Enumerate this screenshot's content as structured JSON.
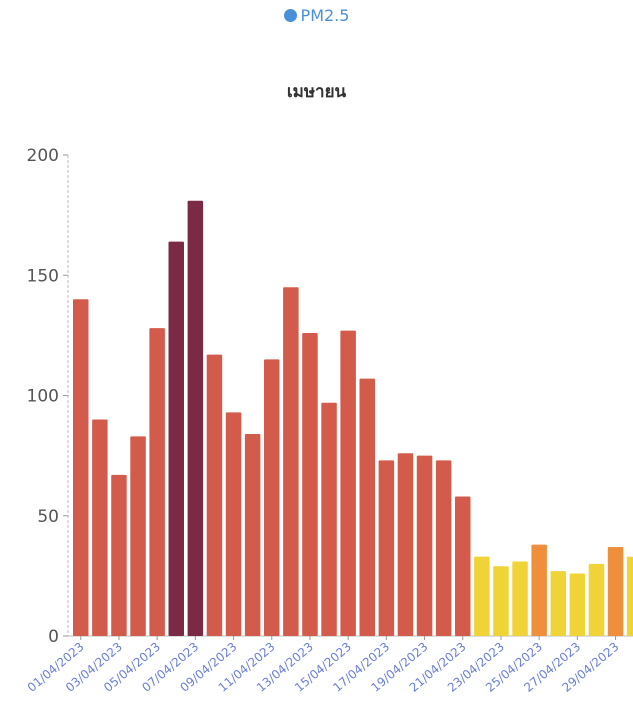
{
  "legend": {
    "label": "PM2.5",
    "color": "#4a90d9"
  },
  "chart_data": {
    "type": "bar",
    "title": "เมษายน",
    "series": [
      {
        "name": "PM2.5",
        "values": [
          140,
          90,
          67,
          83,
          128,
          164,
          181,
          117,
          93,
          84,
          115,
          145,
          126,
          97,
          127,
          107,
          73,
          76,
          75,
          73,
          58,
          33,
          29,
          31,
          38,
          27,
          26,
          30,
          37,
          33
        ]
      }
    ],
    "categories": [
      "01/04/2023",
      "02/04/2023",
      "03/04/2023",
      "04/04/2023",
      "05/04/2023",
      "06/04/2023",
      "07/04/2023",
      "08/04/2023",
      "09/04/2023",
      "10/04/2023",
      "11/04/2023",
      "12/04/2023",
      "13/04/2023",
      "14/04/2023",
      "15/04/2023",
      "16/04/2023",
      "17/04/2023",
      "18/04/2023",
      "19/04/2023",
      "20/04/2023",
      "21/04/2023",
      "22/04/2023",
      "23/04/2023",
      "24/04/2023",
      "25/04/2023",
      "26/04/2023",
      "27/04/2023",
      "28/04/2023",
      "29/04/2023",
      "30/04/2023"
    ],
    "x_tick_labels": [
      "01/04/2023",
      "03/04/2023",
      "05/04/2023",
      "07/04/2023",
      "09/04/2023",
      "11/04/2023",
      "13/04/2023",
      "15/04/2023",
      "17/04/2023",
      "19/04/2023",
      "21/04/2023",
      "23/04/2023",
      "25/04/2023",
      "27/04/2023",
      "29/04/2023"
    ],
    "y_ticks": [
      "0",
      "50",
      "100",
      "150",
      "200"
    ],
    "ylim": [
      0,
      200
    ],
    "grid": false,
    "colors": {
      "very_unhealthy": "#7b2a45",
      "unhealthy": "#d35b4b",
      "sensitive": "#ef8f3c",
      "moderate": "#f0d437"
    }
  }
}
